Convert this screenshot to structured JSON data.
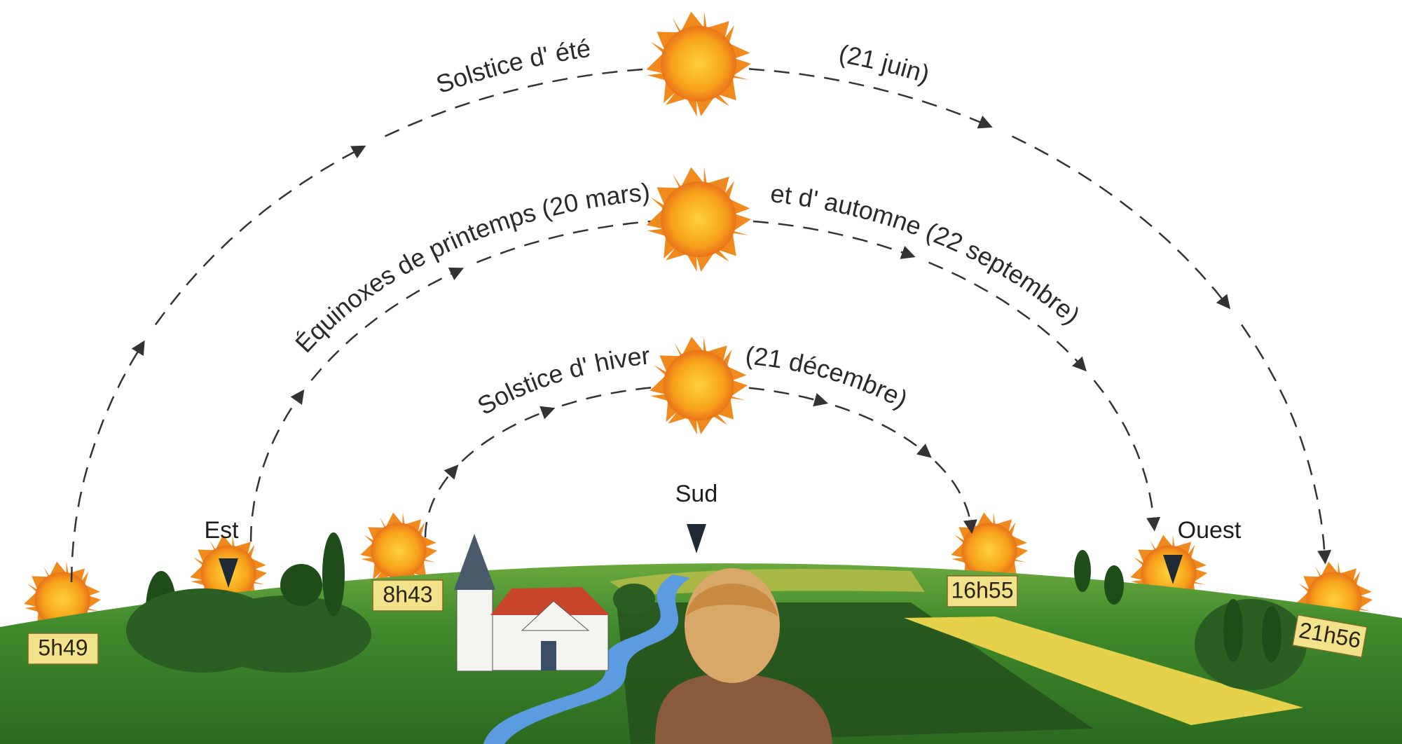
{
  "paths": [
    {
      "name": "Solstice d' été",
      "date": "(21 juin)",
      "sunrise": "5h49",
      "sunset": "21h56"
    },
    {
      "name": "Équinoxes de printemps (20 mars)",
      "date": "et d' automne (22 septembre)"
    },
    {
      "name": "Solstice d' hiver",
      "date": "(21 décembre)",
      "sunrise": "8h43",
      "sunset": "16h55"
    }
  ],
  "directions": {
    "east": "Est",
    "south": "Sud",
    "west": "Ouest"
  }
}
